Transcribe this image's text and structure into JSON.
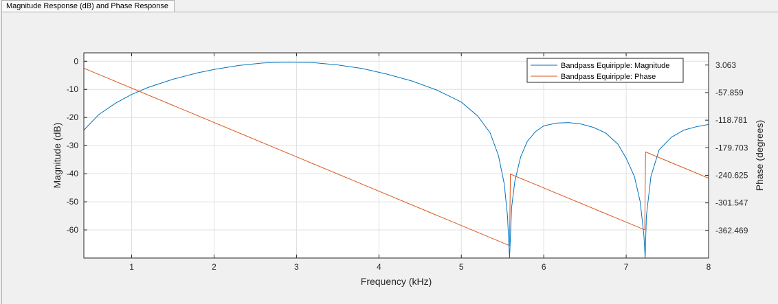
{
  "tab": {
    "title": "Magnitude Response (dB) and Phase Response"
  },
  "chart_data": {
    "type": "line",
    "xlabel": "Frequency (kHz)",
    "ylabel": "Magnitude (dB)",
    "y2label": "Phase (degrees)",
    "xlim": [
      0.42,
      8.0
    ],
    "ylim": [
      -70,
      3
    ],
    "y2lim": [
      -423.391,
      30.0
    ],
    "xticks": [
      "1",
      "2",
      "3",
      "4",
      "5",
      "6",
      "7",
      "8"
    ],
    "yticks": [
      "0",
      "-10",
      "-20",
      "-30",
      "-40",
      "-50",
      "-60"
    ],
    "y2ticks": [
      "3.063",
      "-57.859",
      "-118.781",
      "-179.703",
      "-240.625",
      "-301.547",
      "-362.469"
    ],
    "grid": true,
    "legend": {
      "placement": "top-right",
      "entries": [
        "Bandpass Equiripple: Magnitude",
        "Bandpass Equiripple: Phase"
      ]
    },
    "colors": {
      "magnitude": "#0072bd",
      "phase": "#d95319"
    },
    "series": [
      {
        "name": "Bandpass Equiripple: Magnitude",
        "axis": "left",
        "x": [
          0.42,
          0.6,
          0.8,
          1.0,
          1.2,
          1.5,
          1.8,
          2.0,
          2.3,
          2.6,
          2.9,
          3.2,
          3.5,
          3.8,
          4.1,
          4.4,
          4.7,
          5.0,
          5.2,
          5.35,
          5.45,
          5.52,
          5.56,
          5.585,
          5.61,
          5.65,
          5.72,
          5.8,
          5.9,
          6.0,
          6.15,
          6.3,
          6.45,
          6.6,
          6.75,
          6.9,
          7.0,
          7.1,
          7.17,
          7.215,
          7.23,
          7.245,
          7.3,
          7.4,
          7.55,
          7.7,
          7.85,
          8.0
        ],
        "y": [
          -24.5,
          -19.0,
          -15.0,
          -11.8,
          -9.3,
          -6.4,
          -4.1,
          -2.9,
          -1.5,
          -0.6,
          -0.3,
          -0.5,
          -1.3,
          -2.6,
          -4.6,
          -7.0,
          -10.2,
          -14.5,
          -19.5,
          -25.5,
          -33.5,
          -43.5,
          -55.0,
          -70.0,
          -52.0,
          -42.5,
          -34.0,
          -28.5,
          -25.0,
          -23.0,
          -22.0,
          -21.8,
          -22.3,
          -23.5,
          -25.5,
          -29.5,
          -34.5,
          -41.0,
          -50.0,
          -62.0,
          -70.0,
          -55.0,
          -41.0,
          -31.5,
          -27.0,
          -24.5,
          -23.3,
          -22.5
        ]
      },
      {
        "name": "Bandpass Equiripple: Phase",
        "axis": "right",
        "x": [
          0.42,
          5.585,
          5.585,
          5.595,
          7.225,
          7.225,
          7.235,
          8.0
        ],
        "y": [
          -4.0,
          -396.0,
          -396.0,
          -238.0,
          -361.0,
          -361.0,
          -189.0,
          -247.0
        ]
      }
    ]
  }
}
